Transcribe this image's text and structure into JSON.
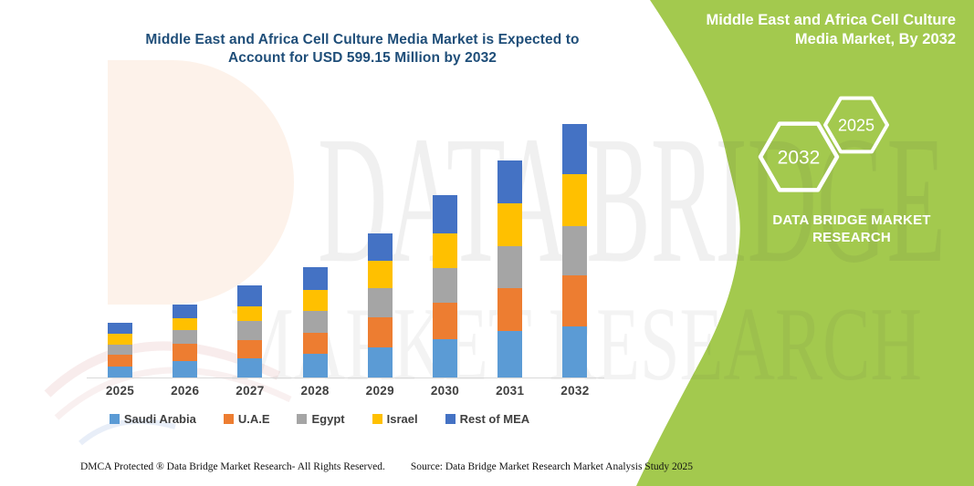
{
  "title": {
    "line1": "Middle East and Africa Cell Culture Media Market is Expected to",
    "line2": "Account for USD 599.15 Million by 2032",
    "color": "#1F4E79"
  },
  "chart_data": {
    "type": "bar",
    "stacked": true,
    "title": "Middle East and Africa Cell Culture Media Market is Expected to Account for USD 599.15 Million by 2032",
    "unit": "USD Million",
    "categories": [
      "2025",
      "2026",
      "2027",
      "2028",
      "2029",
      "2030",
      "2031",
      "2032"
    ],
    "series": [
      {
        "name": "Saudi Arabia",
        "color": "#5B9BD5",
        "values": [
          26.6,
          39.5,
          45.3,
          55.3,
          71.1,
          90.5,
          109.9,
          119.9
        ]
      },
      {
        "name": "U.A.E",
        "color": "#ED7D31",
        "values": [
          27.3,
          39.5,
          43.1,
          51.0,
          71.1,
          86.2,
          101.3,
          120.9
        ]
      },
      {
        "name": "Egypt",
        "color": "#A5A5A5",
        "values": [
          23.7,
          32.3,
          44.5,
          51.7,
          69.0,
          81.9,
          99.1,
          116.4
        ]
      },
      {
        "name": "Israel",
        "color": "#FFC000",
        "values": [
          26.6,
          28.7,
          35.9,
          48.1,
          64.7,
          81.9,
          101.3,
          122.8
        ]
      },
      {
        "name": "Rest of MEA",
        "color": "#4472C4",
        "values": [
          25.1,
          32.3,
          48.1,
          54.6,
          64.7,
          90.5,
          101.3,
          119.15
        ]
      }
    ],
    "total_2032": 599.15,
    "xlabel": "",
    "ylabel": "",
    "ylim": [
      0,
      599.15
    ],
    "y_axis_visible": false,
    "gridlines": false,
    "legend_position": "bottom"
  },
  "side_panel": {
    "bg_color": "#A3C94E",
    "heading": "Middle East and Africa Cell Culture Media Market, By 2032",
    "hexagon_large_label": "2032",
    "hexagon_small_label": "2025",
    "brand_name": "DATA BRIDGE MARKET RESEARCH"
  },
  "watermark": {
    "line1": "DATA BRIDGE",
    "line2": "MARKET RESEARCH"
  },
  "footer": {
    "dmca": "DMCA Protected ® Data Bridge Market Research-  All Rights Reserved.",
    "source": "Source: Data Bridge Market Research  Market Analysis Study 2025"
  }
}
